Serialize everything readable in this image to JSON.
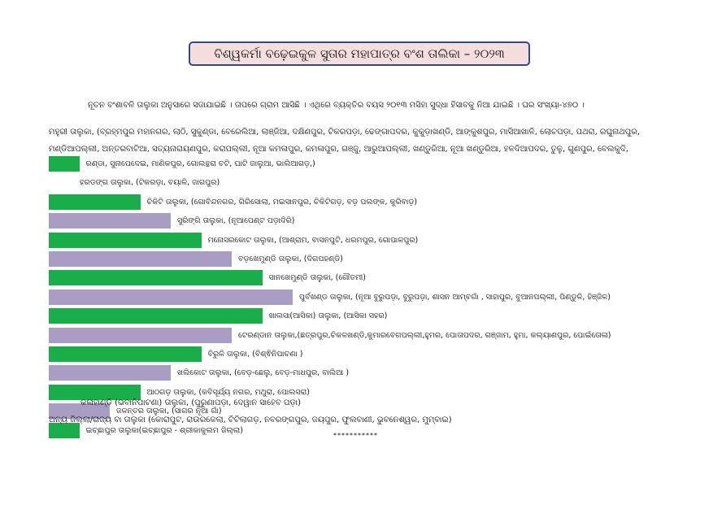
{
  "title": "ବିଶ୍ୱକର୍ମା ବଢ଼େଇକୁଳ ସୁତାର ମହାପାତ୍ର ବଂଶ ତାଲିକା – ୨୦୨୩",
  "intro": "ନୂତନ ବଂଶାବଳି ତାଲୁକା ଅନୁସାରେ ସଜାଯାଇଛି । ତାପରେ ଗ୍ରାମ ଆସିଛି । ଏଥିରେ ବ୍ୟକ୍ତିର ବୟସ ୨୦୧୩ ମସିହା ସୁଦ୍ଧା ହିସାବକୁ ନିଆ ଯାଇଛି । ଘର ସଂଖ୍ୟା-୪୭୦ ।",
  "mahuri": {
    "line1": "ମହୁରୀ ତାଲୁକା, (ବ୍ରହ୍ମପୁର ମହାନଗର, ଲାଠି, ସୁକୁଣ୍ଡା, ବେରେଲିଆ, ଲାଞ୍ଜିଆ, ଦକ୍ଷିଣପୁର, ଟିକରପଡ଼ା, ଢେଙ୍ଗାପଦର, କୁକୁଡ଼ାଖଣ୍ଡି, ଆଙ୍କୁଶପୁର, ମାସିଆଖାଳି, ଲୋଚପଡ଼ା, ପଥରା, ରଘୁନାଥପୁର,",
    "line2": "ମଣ୍ଡିଆପଲ୍ଲୀ, ଅନ୍ତରବାଟିଆ, ସତ୍ୟନାରାୟଣପୁର, କରାପଲ୍ଲୀ, ନୂଆ କମଳାପୁର, କମଳାପୁର, ଗଞ୍ଜୁ, ଆରୁଆପଲ୍ଲୀ, ଖଣ୍ଡୁରିଆ, ନୂଆ ଖଣ୍ଡୁରିଆ, ହଳଦିଆପଦର, ତୁଳୁ, ଗୁଣପୁର, ବେଲକୁଦି,",
    "line3": "ରଣ୍ଡା, ସୁନାପେଦେଇ, ମାଣିକପୁର, ଗୋଲନ୍ଥରା ଚଟି, ଘାଟି ଜାଲୁଆ, ଭାଲିଆଗଡ଼,)"
  },
  "rows": [
    {
      "value": 1,
      "color": "#1aae4b",
      "label": "ରଣ୍ଡା, ସୁନାପେଦେଇ, ମାଣିକପୁର, ଗୋଲନ୍ଥରା ଚଟି, ଘାଟି ଜାଲୁଆ, ଭାଲିଆଗଡ଼,)"
    },
    {
      "value": 0,
      "color": "#a99dc4",
      "label": "ହରଡଙ୍ଗ ତାଲୁକା, (ଟିକରଡ଼ା, ବୟାଳି, ଜାଗପୁର)"
    },
    {
      "value": 3,
      "color": "#1aae4b",
      "label": "ଚିକିଟି ତାଲୁକା, (ଗୋବିନ୍ଦନଗର, ଗିରିସୋଲା, ମଇସାନପୁର, ଚିକିଟିଗଡ଼, ବଡ଼ ପଲଙ୍କ, କୁରିବାଡ଼)"
    },
    {
      "value": 4,
      "color": "#a99dc4",
      "label": "ସୁରିଙ୍ଗି ତାଲୁକା, (ନୂଆପେଣ୍ଟ ପଡ଼ାଦିରି)"
    },
    {
      "value": 5,
      "color": "#1aae4b",
      "label": "ମନୋସରକୋଟ ତାଲୁକା, (ଆଶ୍ରାମ, ବାସନପୁଟି, ଧରମପୁର, ଗୋପାଳପୁର)"
    },
    {
      "value": 6,
      "color": "#a99dc4",
      "label": "ବଡ଼ଖେମୁଣ୍ଡି ତାଲୁକା, (ଦିଗପହଣ୍ଡି)"
    },
    {
      "value": 7,
      "color": "#1aae4b",
      "label": "ସାନଖେମୁଣ୍ଡି ତାଲୁକା, (ଗୌତମୀ)"
    },
    {
      "value": 8,
      "color": "#a99dc4",
      "label": "ପୁର୍ବଖଣ୍ଡ ତାଲୁକା, (ନୂଆ ବୁରୁପଡ଼ା, ବୁରୁପଡ଼ା, ଶାସନ ଆମ୍ବଗାଁ , ସାହାପୁର, ବୁଆନପଲ୍ଲୀ, ପିଣ୍ଡୁଳି, ହିଞ୍ଜିଳ)"
    },
    {
      "value": 7,
      "color": "#1aae4b",
      "label": "ଖାଲସା(ଆସିକା) ତାଲୁକା, (ଆସିକା ସହର)"
    },
    {
      "value": 6,
      "color": "#a99dc4",
      "label": "ଟେରଣ୍ଡାନ ତାଲୁକା,(ଛତ୍ରପୁର,ଚିକଳଖଣ୍ଡି,କୁମାରବେଗପଲ୍ଲୀ,ହୁମର, ପୋତାପଦର, ଗଞ୍ଜାମ, ହୁମା, କଲ୍ୟାଣପୁର, ପୋଇଁତୋଳା)"
    },
    {
      "value": 5,
      "color": "#1aae4b",
      "label": "ବିରୁଳି ତାଲୁକା, (ବିଶ୍ଵିନିପାଚଣା )"
    },
    {
      "value": 4,
      "color": "#a99dc4",
      "label": "ଖଲିକୋଟ ତାଲୁକା, (ବେଡ଼-ଛେଲୁ, ବେଡ଼-ମାଧପୁର, ବାଲିଆ )"
    },
    {
      "value": 3,
      "color": "#1aae4b",
      "label": "ଆଠଗଡ଼ ତାଲୁକା, (କବିସୂର୍ଯ୍ୟ ନଗର, ମଥୁରା, ପୋଲସରା)"
    },
    {
      "value": 2,
      "color": "#a99dc4",
      "label": "ଜଳନ୍ତର ତାଲୁକା, (ସାଗର ନୂଆ ଗାଁ)"
    },
    {
      "value": 1,
      "color": "#1aae4b",
      "label": "ଇଚ୍ଛାପୁର ତାଲୁକା(ଇଚ୍ଛାପୁର - ଶ୍ରୀକାକୁଲମ ଜିଲ୍ଲା)"
    }
  ],
  "extra_lines": [
    "କଳାହାଣ୍ଡି (ଭବାନିପାଟଣା) ତାଲୁକା, (ପୁରୁଣାପଡ଼ା, ଦେୱାନ ସାହେବ ପଡ଼ା)",
    "ଅନ୍ୟ ଜିଲ୍ଲା/ରାଜ୍ୟ ବା ତାଲୁକା (କୋରାପୁଟ, ରାଉରକେଲା, ଟିଟିଲାଗଡ଼, ନବରଙ୍ଗପୁର, ଜୟପୁର, ଫୁଲବାଣୀ, ଭୁବନେଶ୍ୱର, ମୁମ୍ବାଇ)"
  ],
  "footer": "***********"
}
